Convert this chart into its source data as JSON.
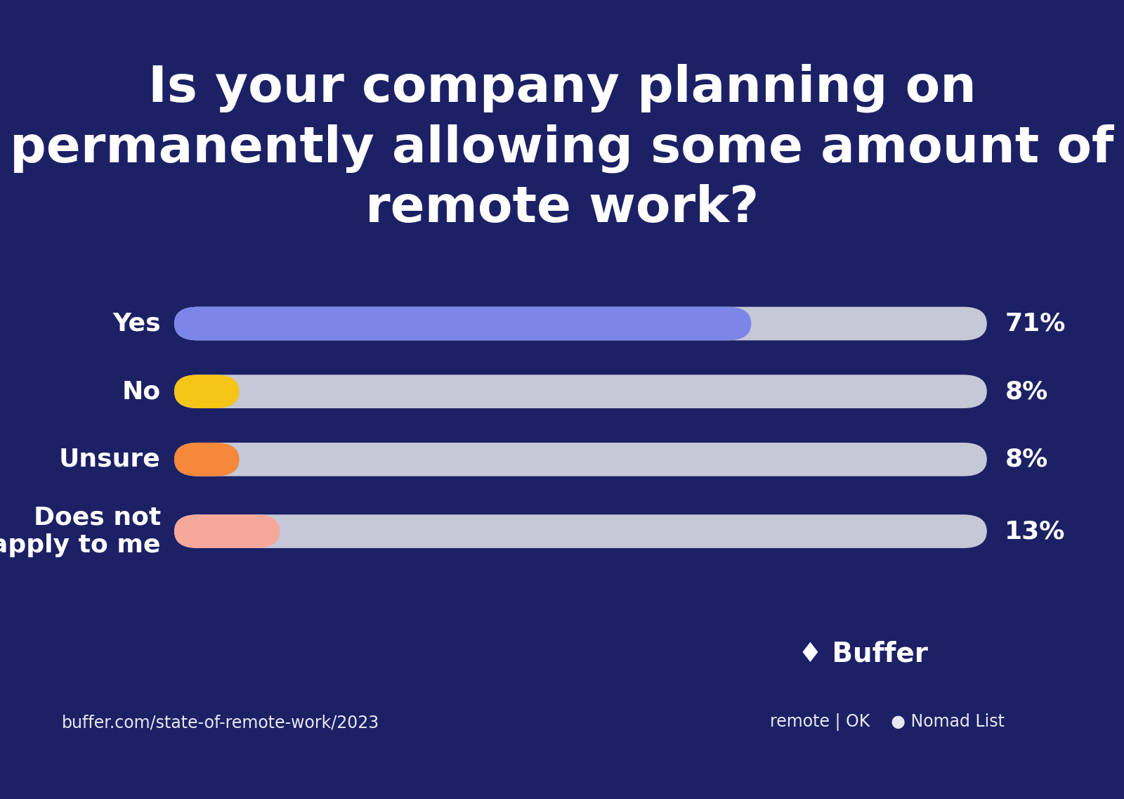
{
  "title_line1": "Is your company planning on",
  "title_line2": "permanently allowing some amount of",
  "title_line3": "remote work?",
  "background_color": "#1c2166",
  "categories": [
    "Yes",
    "No",
    "Unsure",
    "Does not\napply to me"
  ],
  "values": [
    71,
    8,
    8,
    13
  ],
  "bar_colors": [
    "#7b86e8",
    "#f5c518",
    "#f5883a",
    "#f5a89a"
  ],
  "track_color": "#c5c8d6",
  "text_color": "#ffffff",
  "label_fontsize": 26,
  "value_fontsize": 26,
  "title_fontsize": 52,
  "bar_height": 0.042,
  "footnote": "buffer.com/state-of-remote-work/2023",
  "footnote_fontsize": 17,
  "buffer_text": "♦ Buffer",
  "buffer_fontsize": 28,
  "remote_text": "remote | OK    ● Nomad List",
  "remote_fontsize": 17
}
